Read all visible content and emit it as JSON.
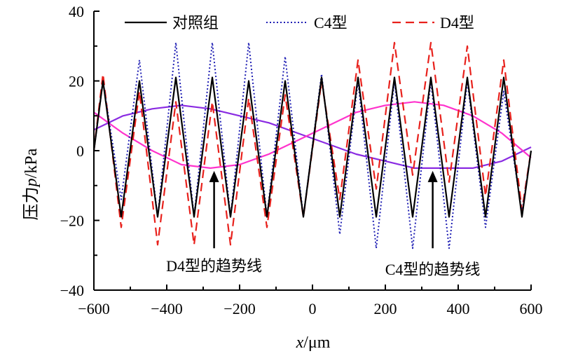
{
  "chart_data": {
    "type": "line",
    "title": "",
    "xlabel_var": "x",
    "xlabel_unit": "/μm",
    "ylabel_prefix": "压力",
    "ylabel_var": "p",
    "ylabel_unit": "/kPa",
    "xlim": [
      -600,
      600
    ],
    "ylim": [
      -40,
      40
    ],
    "x_ticks": [
      -600,
      -400,
      -200,
      0,
      200,
      400,
      600
    ],
    "x_tick_labels": [
      "−600",
      "−400",
      "−200",
      "0",
      "200",
      "400",
      "600"
    ],
    "y_ticks": [
      -40,
      -20,
      0,
      20,
      40
    ],
    "y_tick_labels": [
      "−40",
      "−20",
      "0",
      "20",
      "40"
    ],
    "grid": false,
    "legend_position": "top",
    "series": [
      {
        "name": "对照组",
        "style": "solid",
        "color": "#000000",
        "points": [
          [
            -600,
            0
          ],
          [
            -575,
            20
          ],
          [
            -525,
            -19
          ],
          [
            -475,
            20
          ],
          [
            -425,
            -19
          ],
          [
            -375,
            21
          ],
          [
            -325,
            -19
          ],
          [
            -275,
            21
          ],
          [
            -225,
            -19
          ],
          [
            -175,
            20
          ],
          [
            -125,
            -19
          ],
          [
            -75,
            20
          ],
          [
            -25,
            -19
          ],
          [
            25,
            21
          ],
          [
            75,
            -19
          ],
          [
            125,
            21
          ],
          [
            175,
            -19
          ],
          [
            225,
            21
          ],
          [
            275,
            -19
          ],
          [
            325,
            21
          ],
          [
            375,
            -19
          ],
          [
            425,
            21
          ],
          [
            475,
            -19
          ],
          [
            525,
            21
          ],
          [
            575,
            -19
          ],
          [
            600,
            0
          ]
        ]
      },
      {
        "name": "C4型",
        "style": "dotted",
        "color": "#1f1fb4",
        "points": [
          [
            -600,
            0
          ],
          [
            -575,
            20
          ],
          [
            -525,
            -14
          ],
          [
            -475,
            26
          ],
          [
            -425,
            -19
          ],
          [
            -375,
            31
          ],
          [
            -325,
            -19
          ],
          [
            -275,
            31
          ],
          [
            -225,
            -19
          ],
          [
            -175,
            31
          ],
          [
            -125,
            -19
          ],
          [
            -75,
            27
          ],
          [
            -25,
            -19
          ],
          [
            25,
            22
          ],
          [
            75,
            -24
          ],
          [
            125,
            20
          ],
          [
            175,
            -28
          ],
          [
            225,
            20
          ],
          [
            275,
            -28
          ],
          [
            325,
            20
          ],
          [
            375,
            -28
          ],
          [
            425,
            20
          ],
          [
            475,
            -22
          ],
          [
            525,
            17
          ],
          [
            575,
            -18
          ],
          [
            600,
            0
          ]
        ]
      },
      {
        "name": "D4型",
        "style": "dashed",
        "color": "#e8211c",
        "points": [
          [
            -600,
            0
          ],
          [
            -575,
            22
          ],
          [
            -525,
            -22
          ],
          [
            -475,
            17
          ],
          [
            -425,
            -27
          ],
          [
            -375,
            14
          ],
          [
            -325,
            -27
          ],
          [
            -275,
            14
          ],
          [
            -225,
            -27
          ],
          [
            -175,
            15
          ],
          [
            -125,
            -22
          ],
          [
            -75,
            16
          ],
          [
            -25,
            -19
          ],
          [
            25,
            20
          ],
          [
            75,
            -14
          ],
          [
            125,
            26
          ],
          [
            175,
            -11
          ],
          [
            225,
            31
          ],
          [
            275,
            -7
          ],
          [
            325,
            31
          ],
          [
            375,
            -9
          ],
          [
            425,
            30
          ],
          [
            475,
            -13
          ],
          [
            525,
            26
          ],
          [
            575,
            -17
          ],
          [
            600,
            0
          ]
        ]
      },
      {
        "name": "C4型的趋势线",
        "style": "solid",
        "color": "#8a2be2",
        "points": [
          [
            -600,
            6
          ],
          [
            -520,
            10
          ],
          [
            -440,
            12
          ],
          [
            -360,
            13
          ],
          [
            -280,
            12
          ],
          [
            -200,
            10
          ],
          [
            -120,
            8
          ],
          [
            -40,
            5
          ],
          [
            40,
            2
          ],
          [
            120,
            -1
          ],
          [
            200,
            -3
          ],
          [
            280,
            -5
          ],
          [
            360,
            -5
          ],
          [
            440,
            -5
          ],
          [
            520,
            -3
          ],
          [
            600,
            1
          ]
        ]
      },
      {
        "name": "D4型的趋势线",
        "style": "solid",
        "color": "#ff33cc",
        "points": [
          [
            -600,
            11
          ],
          [
            -520,
            5
          ],
          [
            -440,
            0
          ],
          [
            -360,
            -4
          ],
          [
            -280,
            -5
          ],
          [
            -200,
            -4
          ],
          [
            -120,
            -1
          ],
          [
            -40,
            3
          ],
          [
            40,
            7
          ],
          [
            120,
            11
          ],
          [
            200,
            13
          ],
          [
            280,
            14
          ],
          [
            360,
            13
          ],
          [
            440,
            10
          ],
          [
            520,
            5
          ],
          [
            600,
            -2
          ]
        ]
      }
    ],
    "annotations": [
      {
        "text": "D4型的趋势线",
        "x": -270,
        "y": -33,
        "arrow_from": [
          -270,
          -28
        ],
        "arrow_to": [
          -270,
          -5
        ]
      },
      {
        "text": "C4型的趋势线",
        "x": 330,
        "y": -34,
        "arrow_from": [
          330,
          -28
        ],
        "arrow_to": [
          330,
          -5
        ]
      }
    ]
  }
}
